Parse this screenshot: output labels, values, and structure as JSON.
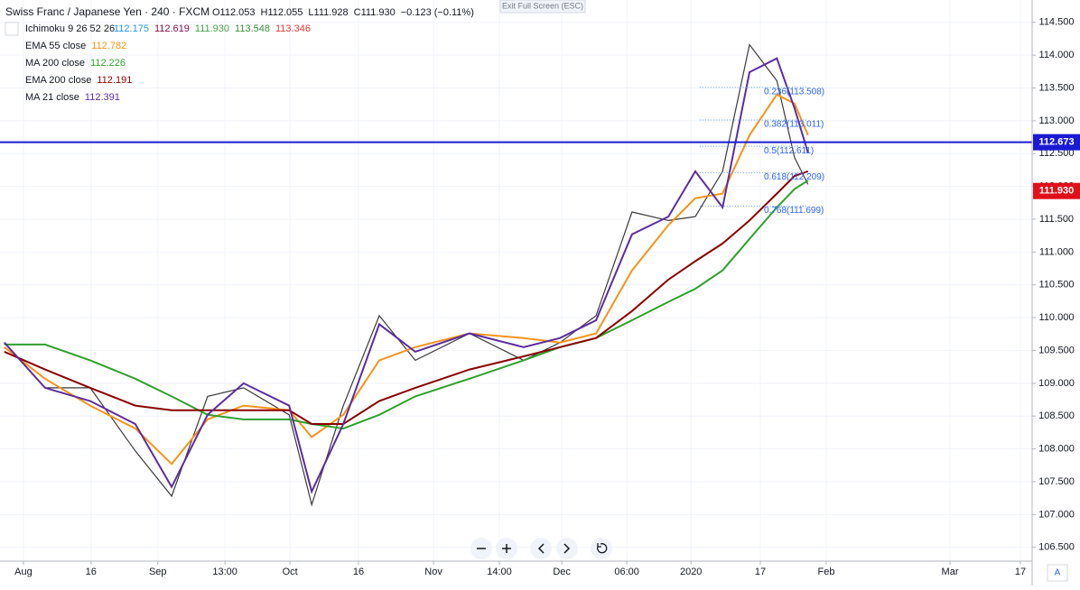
{
  "chart_data": {
    "type": "line",
    "header": {
      "symbol": "Swiss Franc / Japanese Yen · 240 · FXCM",
      "ohlc": [
        "O112.053",
        "H112.055",
        "L111.928",
        "C111.930",
        "−0.123 (−0.11%)"
      ]
    },
    "ichimoku_legend": {
      "name": "Ichimoku 9 26 52 26",
      "values": [
        {
          "text": "112.175",
          "color": "#2196f3"
        },
        {
          "text": "112.619",
          "color": "#880e4f"
        },
        {
          "text": "111.930",
          "color": "#43a047"
        },
        {
          "text": "113.548",
          "color": "#388e3c"
        },
        {
          "text": "113.346",
          "color": "#e53935"
        }
      ]
    },
    "exit_label": "Exit Full Screen (ESC)",
    "auto_label": "A",
    "x": [
      -4.4,
      5,
      15.4,
      25.8,
      34.2,
      42.5,
      50.8,
      61.3,
      66.5,
      73.8,
      82.1,
      90.4,
      102.9,
      115.4,
      123.8,
      132.1,
      140.4,
      148.8,
      155,
      161.3,
      167.5,
      173.8,
      177.9,
      181
    ],
    "xlim": [
      -5.4,
      232.7
    ],
    "xticks": [
      {
        "value": 0,
        "label": "Aug"
      },
      {
        "value": 15.6,
        "label": "16"
      },
      {
        "value": 31,
        "label": "Sep"
      },
      {
        "value": 46.5,
        "label": "13:00"
      },
      {
        "value": 61.5,
        "label": "Oct"
      },
      {
        "value": 77.3,
        "label": "16"
      },
      {
        "value": 94.6,
        "label": "Nov"
      },
      {
        "value": 109.8,
        "label": "14:00"
      },
      {
        "value": 124.2,
        "label": "Dec"
      },
      {
        "value": 139.2,
        "label": "06:00"
      },
      {
        "value": 154,
        "label": "2020"
      },
      {
        "value": 170,
        "label": "17"
      },
      {
        "value": 185.2,
        "label": "Feb"
      },
      {
        "value": 213.75,
        "label": "Mar"
      },
      {
        "value": 230,
        "label": "17"
      }
    ],
    "ylim": [
      106.29,
      114.84
    ],
    "yticks": [
      {
        "value": 106.5,
        "label": "106.500"
      },
      {
        "value": 107,
        "label": "107.000"
      },
      {
        "value": 107.5,
        "label": "107.500"
      },
      {
        "value": 108,
        "label": "108.000"
      },
      {
        "value": 108.5,
        "label": "108.500"
      },
      {
        "value": 109,
        "label": "109.000"
      },
      {
        "value": 109.5,
        "label": "109.500"
      },
      {
        "value": 110,
        "label": "110.000"
      },
      {
        "value": 110.5,
        "label": "110.500"
      },
      {
        "value": 111,
        "label": "111.000"
      },
      {
        "value": 111.5,
        "label": "111.500"
      },
      {
        "value": 112,
        "label": "112.000"
      },
      {
        "value": 112.5,
        "label": "112.500"
      },
      {
        "value": 113,
        "label": "113.000"
      },
      {
        "value": 113.5,
        "label": "113.500"
      },
      {
        "value": 114,
        "label": "114.000"
      },
      {
        "value": 114.5,
        "label": "114.500"
      }
    ],
    "grid": true,
    "price": {
      "color": "#3a3a3a",
      "values": [
        109.62,
        108.93,
        108.93,
        107.97,
        107.28,
        108.8,
        108.93,
        108.52,
        107.15,
        108.66,
        110.03,
        109.35,
        109.76,
        109.35,
        109.62,
        110.03,
        111.61,
        111.48,
        111.54,
        112.23,
        114.16,
        113.61,
        112.44,
        112.03
      ]
    },
    "series": [
      {
        "name": "EMA 55 close",
        "legend_value": 112.782,
        "color": "#f7931a",
        "values": [
          109.55,
          109.07,
          108.66,
          108.31,
          107.77,
          108.45,
          108.66,
          108.59,
          108.18,
          108.52,
          109.35,
          109.55,
          109.76,
          109.69,
          109.62,
          109.76,
          110.72,
          111.41,
          111.82,
          111.89,
          112.78,
          113.4,
          113.26,
          112.78
        ]
      },
      {
        "name": "MA 200 close",
        "legend_value": 112.226,
        "color": "#2ea02e",
        "values": [
          109.59,
          109.59,
          109.35,
          109.07,
          108.8,
          108.52,
          108.45,
          108.45,
          108.38,
          108.31,
          108.52,
          108.8,
          109.07,
          109.35,
          109.55,
          109.69,
          109.96,
          110.24,
          110.44,
          110.72,
          111.2,
          111.68,
          111.96,
          112.09
        ]
      },
      {
        "name": "EMA 200 close",
        "legend_value": 112.191,
        "color": "#8b0000",
        "values": [
          109.48,
          109.21,
          108.93,
          108.66,
          108.59,
          108.59,
          108.59,
          108.59,
          108.38,
          108.38,
          108.73,
          108.93,
          109.21,
          109.41,
          109.55,
          109.69,
          110.1,
          110.58,
          110.86,
          111.13,
          111.48,
          111.89,
          112.16,
          112.23
        ]
      },
      {
        "name": "MA 21 close",
        "legend_value": 112.391,
        "color": "#5b2ca0",
        "values": [
          109.62,
          108.93,
          108.73,
          108.38,
          107.42,
          108.52,
          109.0,
          108.66,
          107.35,
          108.38,
          109.9,
          109.48,
          109.76,
          109.55,
          109.69,
          109.96,
          111.27,
          111.54,
          112.23,
          111.68,
          113.74,
          113.95,
          113.19,
          112.51
        ]
      }
    ],
    "fib_levels": [
      {
        "value": 113.508,
        "label": "0.236(113.508)"
      },
      {
        "value": 113.011,
        "label": "0.382(113.011)"
      },
      {
        "value": 112.611,
        "label": "0.5(112.611)"
      },
      {
        "value": 112.209,
        "label": "0.618(112.209)"
      },
      {
        "value": 111.699,
        "label": "0.768(111.699)"
      }
    ],
    "fib_xrange": [
      156,
      181
    ],
    "hline": {
      "value": 112.673,
      "label": "112.673",
      "color": "#1a1ad6"
    },
    "last_price": {
      "value": 111.93,
      "label": "111.930",
      "color": "#e0101a"
    }
  }
}
